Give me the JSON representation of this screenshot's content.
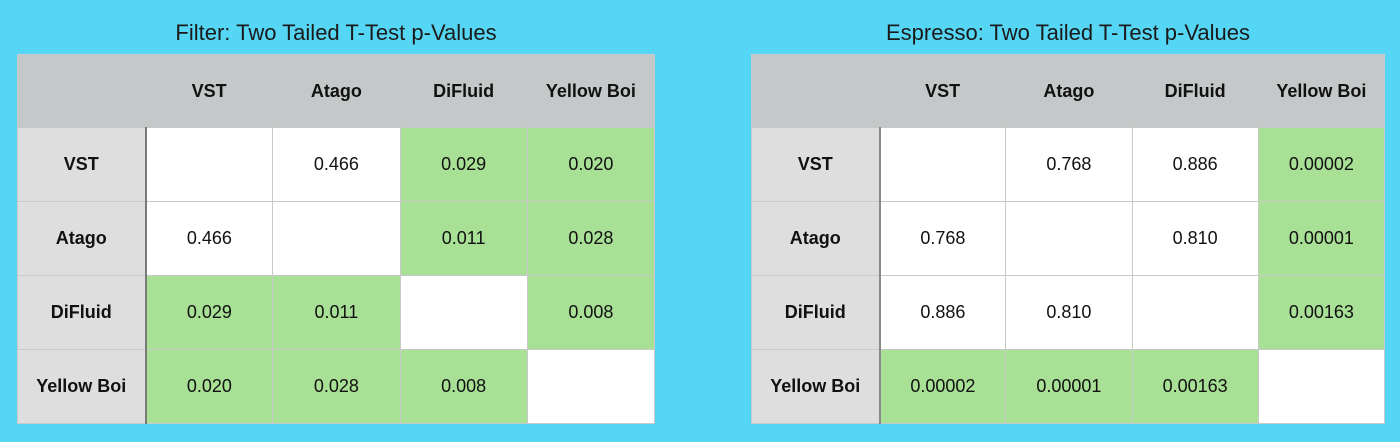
{
  "tables": [
    {
      "title": "Filter: Two Tailed T-Test p-Values",
      "columns": [
        "VST",
        "Atago",
        "DiFluid",
        "Yellow Boi"
      ],
      "rows": [
        {
          "label": "VST",
          "cells": [
            "",
            "0.466",
            "0.029",
            "0.020"
          ],
          "highlight": [
            false,
            false,
            true,
            true
          ]
        },
        {
          "label": "Atago",
          "cells": [
            "0.466",
            "",
            "0.011",
            "0.028"
          ],
          "highlight": [
            false,
            false,
            true,
            true
          ]
        },
        {
          "label": "DiFluid",
          "cells": [
            "0.029",
            "0.011",
            "",
            "0.008"
          ],
          "highlight": [
            true,
            true,
            false,
            true
          ]
        },
        {
          "label": "Yellow Boi",
          "cells": [
            "0.020",
            "0.028",
            "0.008",
            ""
          ],
          "highlight": [
            true,
            true,
            true,
            false
          ]
        }
      ]
    },
    {
      "title": "Espresso: Two Tailed T-Test p-Values",
      "columns": [
        "VST",
        "Atago",
        "DiFluid",
        "Yellow Boi"
      ],
      "rows": [
        {
          "label": "VST",
          "cells": [
            "",
            "0.768",
            "0.886",
            "0.00002"
          ],
          "highlight": [
            false,
            false,
            false,
            true
          ]
        },
        {
          "label": "Atago",
          "cells": [
            "0.768",
            "",
            "0.810",
            "0.00001"
          ],
          "highlight": [
            false,
            false,
            false,
            true
          ]
        },
        {
          "label": "DiFluid",
          "cells": [
            "0.886",
            "0.810",
            "",
            "0.00163"
          ],
          "highlight": [
            false,
            false,
            false,
            true
          ]
        },
        {
          "label": "Yellow Boi",
          "cells": [
            "0.00002",
            "0.00001",
            "0.00163",
            ""
          ],
          "highlight": [
            true,
            true,
            true,
            false
          ]
        }
      ]
    }
  ],
  "colors": {
    "background": "#56d6f5",
    "header": "#c4c8c8",
    "row_header": "#dedede",
    "significant": "#a8e096",
    "not_significant": "#ffffff"
  }
}
